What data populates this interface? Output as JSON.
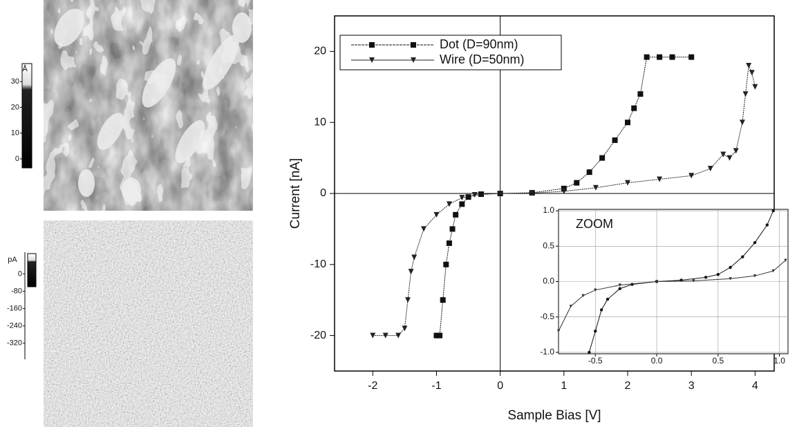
{
  "images": [
    {
      "unit": "Å",
      "lim": [
        -3.5,
        37
      ],
      "ticks": [
        30,
        20,
        10,
        0
      ]
    },
    {
      "unit": "pA",
      "lim": [
        -394,
        100
      ],
      "ticks": [
        0,
        -80,
        -160,
        -240,
        -320
      ]
    }
  ],
  "chart_data": [
    {
      "type": "line",
      "xlabel": "Sample Bias [V]",
      "ylabel": "Current [nA]",
      "xlim": [
        -2.6,
        4.3
      ],
      "xticks": [
        -2,
        -1,
        0,
        1,
        2,
        3,
        4
      ],
      "ylim": [
        -25,
        25
      ],
      "yticks": [
        -20,
        -10,
        0,
        10,
        20
      ],
      "zero_lines": true,
      "legend": "upper left",
      "series": [
        {
          "name": "Dot (D=90nm)",
          "color": "#111111",
          "marker": "square",
          "x": [
            -1,
            -0.95,
            -0.9,
            -0.85,
            -0.8,
            -0.75,
            -0.7,
            -0.6,
            -0.5,
            -0.3,
            0,
            0.5,
            1,
            1.2,
            1.4,
            1.6,
            1.8,
            2.0,
            2.1,
            2.2,
            2.3,
            2.5,
            2.7,
            3.0
          ],
          "values": [
            -20,
            -20,
            -15,
            -10,
            -7,
            -5,
            -3,
            -1.5,
            -0.5,
            -0.1,
            0,
            0.1,
            0.7,
            1.5,
            3,
            5,
            7.5,
            10,
            12,
            14,
            19.2,
            19.2,
            19.2,
            19.2
          ]
        },
        {
          "name": "Wire (D=50nm)",
          "color": "#222222",
          "marker": "triangle",
          "x": [
            -2,
            -1.8,
            -1.6,
            -1.5,
            -1.45,
            -1.4,
            -1.35,
            -1.2,
            -1.0,
            -0.8,
            -0.6,
            -0.4,
            0,
            0.5,
            1,
            1.5,
            2,
            2.5,
            3,
            3.3,
            3.5,
            3.6,
            3.7,
            3.8,
            3.85,
            3.9,
            3.95,
            4.0
          ],
          "values": [
            -20,
            -20,
            -20,
            -19,
            -15,
            -11,
            -9,
            -5,
            -3,
            -1.5,
            -0.6,
            -0.2,
            0,
            0.05,
            0.3,
            0.8,
            1.5,
            2,
            2.5,
            3.5,
            5.5,
            5,
            6,
            10,
            14,
            18,
            17,
            15
          ]
        }
      ]
    },
    {
      "type": "line",
      "annotation": "ZOOM",
      "xlim": [
        -0.8,
        1.07
      ],
      "xticks": [
        -0.5,
        {
          "value": 0,
          "label": "0.0"
        },
        0.5,
        {
          "value": 1,
          "label": "1.0"
        }
      ],
      "ylim": [
        -1.02,
        1.02
      ],
      "yticks": [
        {
          "value": -1,
          "label": "-1.0"
        },
        -0.5,
        {
          "value": 0,
          "label": "0.0"
        },
        0.5,
        {
          "value": 1,
          "label": "1.0"
        }
      ],
      "grid": true,
      "series": [
        {
          "color": "#111111",
          "marker": "circle",
          "x": [
            -0.55,
            -0.5,
            -0.45,
            -0.4,
            -0.3,
            -0.2,
            0,
            0.2,
            0.4,
            0.5,
            0.6,
            0.7,
            0.8,
            0.9,
            0.95
          ],
          "values": [
            -1.0,
            -0.7,
            -0.4,
            -0.25,
            -0.1,
            -0.04,
            0,
            0.02,
            0.06,
            0.1,
            0.2,
            0.35,
            0.55,
            0.8,
            1.0
          ]
        },
        {
          "color": "#333333",
          "marker": "triangle",
          "x": [
            -0.8,
            -0.7,
            -0.6,
            -0.5,
            -0.3,
            0,
            0.3,
            0.6,
            0.8,
            0.95,
            1.05
          ],
          "values": [
            -0.7,
            -0.35,
            -0.2,
            -0.12,
            -0.05,
            0,
            0.01,
            0.04,
            0.08,
            0.15,
            0.3
          ]
        }
      ]
    }
  ]
}
